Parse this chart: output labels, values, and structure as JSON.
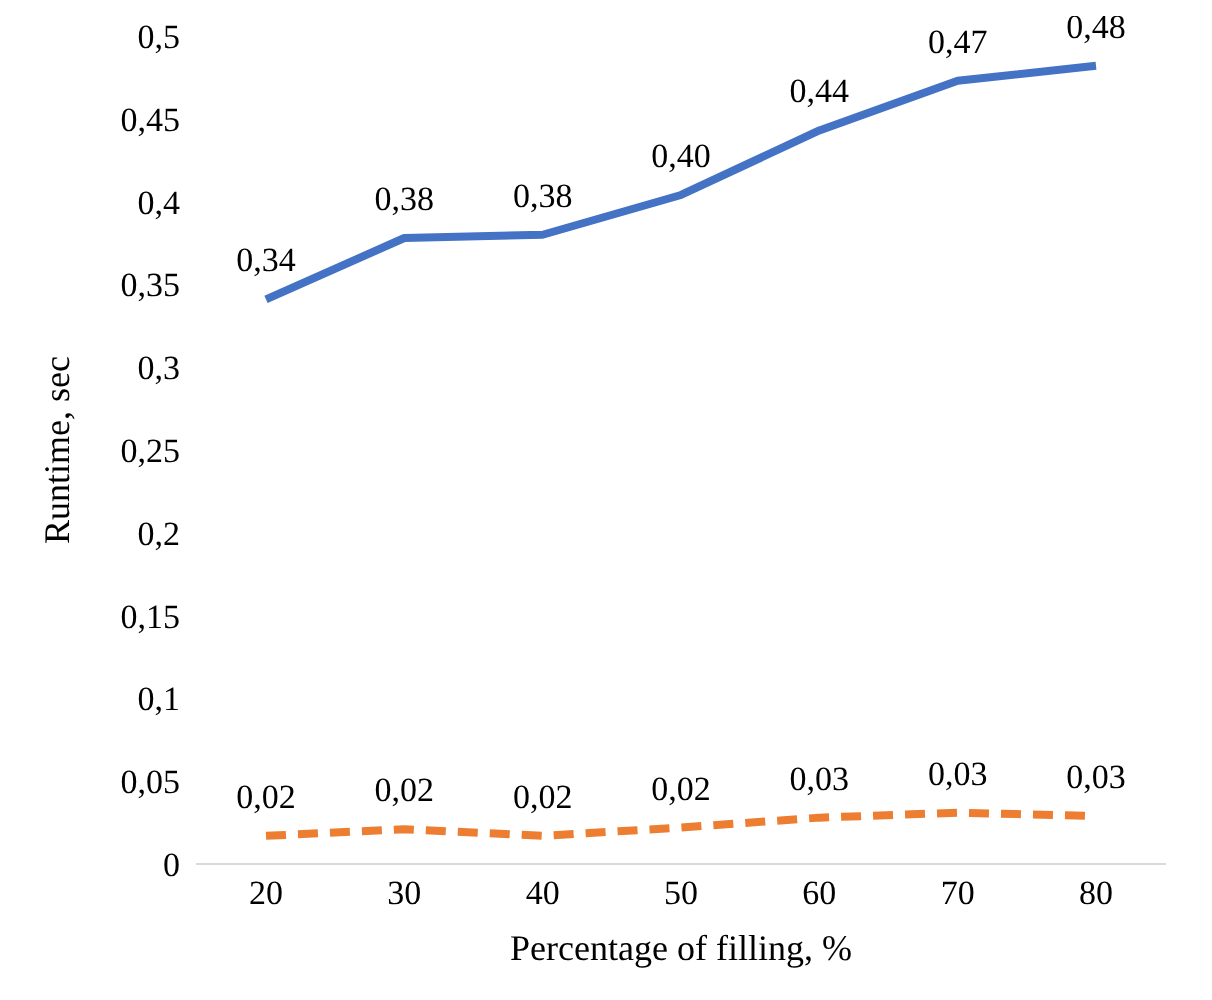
{
  "chart_data": {
    "type": "line",
    "xlabel": "Percentage of filling, %",
    "ylabel": "Runtime, sec",
    "categories": [
      "20",
      "30",
      "40",
      "50",
      "60",
      "70",
      "80"
    ],
    "series": [
      {
        "color": "#4472c4",
        "line_style": "solid",
        "values": [
          0.341,
          0.378,
          0.38,
          0.404,
          0.443,
          0.473,
          0.482
        ],
        "value_labels": [
          "0,34",
          "0,38",
          "0,38",
          "0,40",
          "0,44",
          "0,47",
          "0,48"
        ]
      },
      {
        "color": "#ed7d31",
        "line_style": "dashed",
        "values": [
          0.017,
          0.021,
          0.017,
          0.022,
          0.028,
          0.031,
          0.029
        ],
        "value_labels": [
          "0,02",
          "0,02",
          "0,02",
          "0,02",
          "0,03",
          "0,03",
          "0,03"
        ]
      }
    ],
    "ylim": [
      0,
      0.5
    ],
    "yticks": [
      0,
      {
        "value": 0.05,
        "label": "0,05"
      },
      {
        "value": 0.1,
        "label": "0,1"
      },
      {
        "value": 0.15,
        "label": "0,15"
      },
      {
        "value": 0.2,
        "label": "0,2"
      },
      {
        "value": 0.25,
        "label": "0,25"
      },
      {
        "value": 0.3,
        "label": "0,3"
      },
      {
        "value": 0.35,
        "label": "0,35"
      },
      {
        "value": 0.4,
        "label": "0,4"
      },
      {
        "value": 0.45,
        "label": "0,45"
      },
      {
        "value": 0.5,
        "label": "0,5"
      }
    ],
    "grid": false,
    "legend": false,
    "marker": "none"
  }
}
